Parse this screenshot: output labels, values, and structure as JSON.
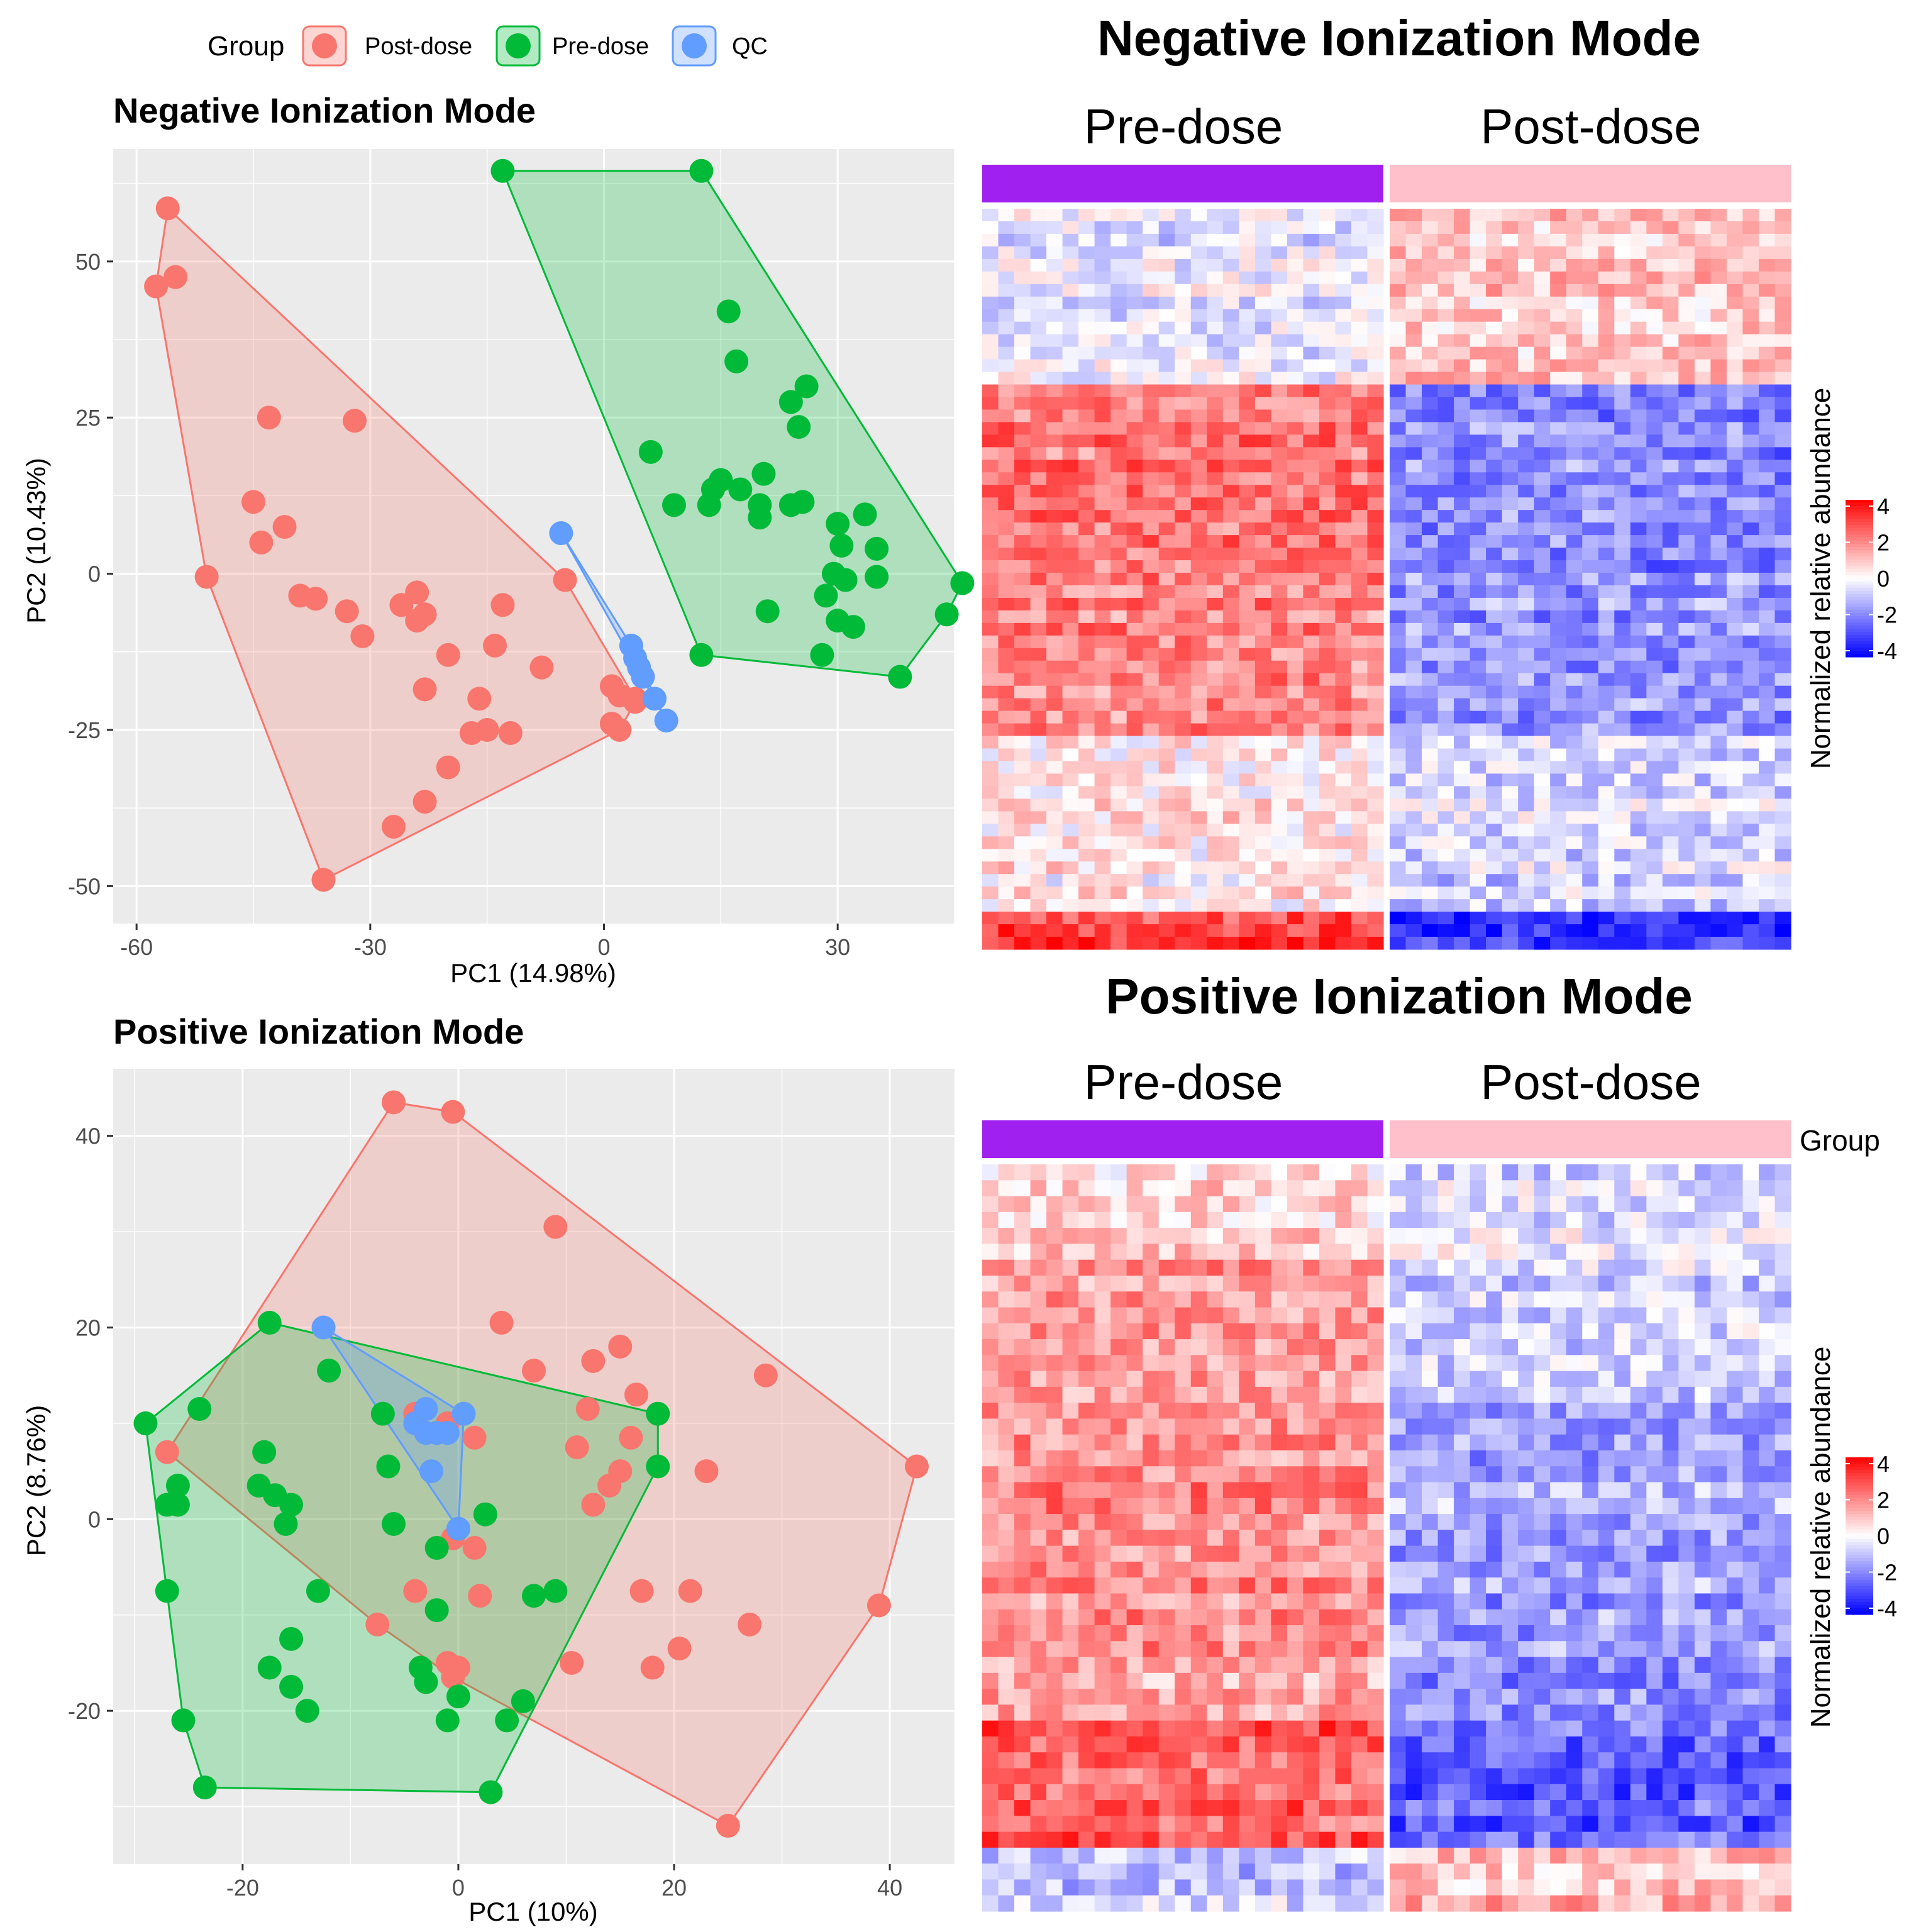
{
  "legend": {
    "title": "Group",
    "items": [
      {
        "label": "Post-dose",
        "color": "#F8766D"
      },
      {
        "label": "Pre-dose",
        "color": "#00BA38"
      },
      {
        "label": "QC",
        "color": "#619CFF"
      }
    ]
  },
  "colors": {
    "post": "#F8766D",
    "pre": "#00BA38",
    "qc": "#619CFF",
    "panel_bg": "#EBEBEB",
    "pre_bar": "#A020F0",
    "post_bar": "#FFC0CB",
    "heat_low": "#0000FF",
    "heat_mid": "#FFFFFF",
    "heat_high": "#FF0000"
  },
  "chart_data": [
    {
      "type": "scatter",
      "title": "Negative Ionization Mode",
      "xlabel": "PC1 (14.98%)",
      "ylabel": "PC2 (10.43%)",
      "xlim": [
        -63,
        45
      ],
      "ylim": [
        -56,
        68
      ],
      "xticks": [
        -60,
        -30,
        0,
        30
      ],
      "yticks": [
        -50,
        -25,
        0,
        25,
        50
      ],
      "series": [
        {
          "name": "Post-dose",
          "points": [
            [
              -56,
              58.5
            ],
            [
              -57.5,
              46
            ],
            [
              -55,
              47.5
            ],
            [
              -43,
              25
            ],
            [
              -32,
              24.5
            ],
            [
              -45,
              11.5
            ],
            [
              -41,
              7.5
            ],
            [
              -44,
              5
            ],
            [
              -51,
              -0.5
            ],
            [
              -39,
              -3.5
            ],
            [
              -37,
              -4
            ],
            [
              -33,
              -6
            ],
            [
              -31,
              -10
            ],
            [
              -26,
              -5
            ],
            [
              -24,
              -3
            ],
            [
              -24,
              -7.5
            ],
            [
              -23,
              -6.5
            ],
            [
              -13,
              -5
            ],
            [
              -14,
              -11.5
            ],
            [
              -20,
              -13
            ],
            [
              -8,
              -15
            ],
            [
              -23,
              -18.5
            ],
            [
              -16,
              -20
            ],
            [
              -17,
              -25.5
            ],
            [
              -15,
              -25
            ],
            [
              -12,
              -25.5
            ],
            [
              -20,
              -31
            ],
            [
              -23,
              -36.5
            ],
            [
              -27,
              -40.5
            ],
            [
              -36,
              -49
            ],
            [
              -5,
              -1
            ],
            [
              1,
              -18
            ],
            [
              2,
              -19.5
            ],
            [
              4,
              -20
            ],
            [
              1,
              -24
            ],
            [
              2,
              -25
            ],
            [
              4,
              -20.5
            ]
          ]
        },
        {
          "name": "Pre-dose",
          "points": [
            [
              -13,
              64.5
            ],
            [
              12.5,
              64.5
            ],
            [
              16,
              42
            ],
            [
              17,
              34
            ],
            [
              24,
              27.5
            ],
            [
              26,
              30
            ],
            [
              25,
              23.5
            ],
            [
              6,
              19.5
            ],
            [
              9,
              11
            ],
            [
              14,
              13.5
            ],
            [
              13.5,
              11
            ],
            [
              15,
              15
            ],
            [
              17.5,
              13.5
            ],
            [
              20.5,
              16
            ],
            [
              20,
              11
            ],
            [
              20,
              9
            ],
            [
              24,
              11
            ],
            [
              25.5,
              11.5
            ],
            [
              30,
              8
            ],
            [
              30.5,
              4.5
            ],
            [
              33.5,
              9.5
            ],
            [
              35,
              4
            ],
            [
              29.5,
              0
            ],
            [
              31,
              -1
            ],
            [
              35,
              -0.5
            ],
            [
              28.5,
              -3.5
            ],
            [
              30,
              -7.5
            ],
            [
              32,
              -8.5
            ],
            [
              21,
              -6
            ],
            [
              12.5,
              -13
            ],
            [
              28,
              -13
            ],
            [
              38,
              -16.5
            ],
            [
              44,
              -6.5
            ],
            [
              46,
              -1.5
            ]
          ]
        },
        {
          "name": "QC",
          "points": [
            [
              -5.5,
              6.5
            ],
            [
              3.5,
              -11.5
            ],
            [
              4,
              -13.5
            ],
            [
              4.5,
              -15
            ],
            [
              5,
              -16.5
            ],
            [
              6.5,
              -20
            ],
            [
              8,
              -23.5
            ]
          ]
        }
      ]
    },
    {
      "type": "scatter",
      "title": "Positive Ionization Mode",
      "xlabel": "PC1 (10%)",
      "ylabel": "PC2 (8.76%)",
      "xlim": [
        -32,
        46
      ],
      "ylim": [
        -36,
        47
      ],
      "xticks": [
        -20,
        0,
        20,
        40
      ],
      "yticks": [
        -20,
        0,
        20,
        40
      ],
      "series": [
        {
          "name": "Post-dose",
          "points": [
            [
              -6,
              43.5
            ],
            [
              -0.5,
              42.5
            ],
            [
              9,
              30.5
            ],
            [
              4,
              20.5
            ],
            [
              7,
              15.5
            ],
            [
              15,
              18
            ],
            [
              12.5,
              16.5
            ],
            [
              28.5,
              15
            ],
            [
              16.5,
              13
            ],
            [
              -4,
              11
            ],
            [
              12,
              11.5
            ],
            [
              -1,
              10
            ],
            [
              1.5,
              8.5
            ],
            [
              16,
              8.5
            ],
            [
              11,
              7.5
            ],
            [
              15,
              5
            ],
            [
              14,
              3.5
            ],
            [
              23,
              5
            ],
            [
              42.5,
              5.5
            ],
            [
              12.5,
              1.5
            ],
            [
              -0.5,
              -2
            ],
            [
              1.5,
              -3
            ],
            [
              -4,
              -7.5
            ],
            [
              2,
              -8
            ],
            [
              17,
              -7.5
            ],
            [
              21.5,
              -7.5
            ],
            [
              -7.5,
              -11
            ],
            [
              27,
              -11
            ],
            [
              39,
              -9
            ],
            [
              -1,
              -15
            ],
            [
              0,
              -15.5
            ],
            [
              -0.5,
              -16.5
            ],
            [
              10.5,
              -15
            ],
            [
              20.5,
              -13.5
            ],
            [
              18,
              -15.5
            ],
            [
              25,
              -32
            ],
            [
              -27,
              7
            ]
          ]
        },
        {
          "name": "Pre-dose",
          "points": [
            [
              -17.5,
              20.5
            ],
            [
              -12,
              15.5
            ],
            [
              -29,
              10
            ],
            [
              -24,
              11.5
            ],
            [
              -18,
              7
            ],
            [
              -26,
              3.5
            ],
            [
              -27,
              1.5
            ],
            [
              -26,
              1.5
            ],
            [
              -18.5,
              3.5
            ],
            [
              -17,
              2.5
            ],
            [
              -15.5,
              1.5
            ],
            [
              -16,
              -0.5
            ],
            [
              -7,
              11
            ],
            [
              -6.5,
              5.5
            ],
            [
              -6,
              -0.5
            ],
            [
              -2,
              -3
            ],
            [
              -2,
              -9.5
            ],
            [
              2.5,
              0.5
            ],
            [
              7,
              -8
            ],
            [
              9,
              -7.5
            ],
            [
              -13,
              -7.5
            ],
            [
              -27,
              -7.5
            ],
            [
              -15.5,
              -12.5
            ],
            [
              -17.5,
              -15.5
            ],
            [
              -15.5,
              -17.5
            ],
            [
              -14,
              -20
            ],
            [
              -25.5,
              -21
            ],
            [
              -23.5,
              -28
            ],
            [
              -3.5,
              -15.5
            ],
            [
              -3,
              -17
            ],
            [
              0,
              -18.5
            ],
            [
              -1,
              -21
            ],
            [
              6,
              -19
            ],
            [
              4.5,
              -21
            ],
            [
              3,
              -28.5
            ],
            [
              18.5,
              11
            ],
            [
              18.5,
              5.5
            ]
          ]
        },
        {
          "name": "QC",
          "points": [
            [
              -12.5,
              20
            ],
            [
              -4,
              10
            ],
            [
              -3,
              11.5
            ],
            [
              0.5,
              11
            ],
            [
              -2,
              9
            ],
            [
              -3,
              9
            ],
            [
              -1,
              9
            ],
            [
              -2.5,
              5
            ],
            [
              0,
              -1
            ]
          ]
        }
      ]
    },
    {
      "type": "heatmap",
      "title": "Negative Ionization Mode",
      "column_groups": [
        "Pre-dose",
        "Post-dose"
      ],
      "color_scale": {
        "title": "Normalized relative abundance",
        "ticks": [
          "4",
          "2",
          "0",
          "-2",
          "-4"
        ],
        "range": [
          -4,
          4
        ]
      },
      "block_means": [
        [
          -0.3,
          0.9
        ],
        [
          2.2,
          -1.8
        ],
        [
          2.0,
          -1.5
        ],
        [
          0.4,
          -0.6
        ],
        [
          3.0,
          -3.2
        ]
      ]
    },
    {
      "type": "heatmap",
      "title": "Positive Ionization Mode",
      "column_groups": [
        "Pre-dose",
        "Post-dose"
      ],
      "annotation_label": "Group",
      "color_scale": {
        "title": "Normalized relative abundance",
        "ticks": [
          "4",
          "2",
          "0",
          "-2",
          "-4"
        ],
        "range": [
          -4,
          4
        ]
      },
      "block_means": [
        [
          0.8,
          -0.4
        ],
        [
          1.5,
          -0.8
        ],
        [
          1.9,
          -1.3
        ],
        [
          1.6,
          -1.6
        ],
        [
          2.5,
          -2.4
        ],
        [
          -1.0,
          1.0
        ]
      ]
    }
  ]
}
